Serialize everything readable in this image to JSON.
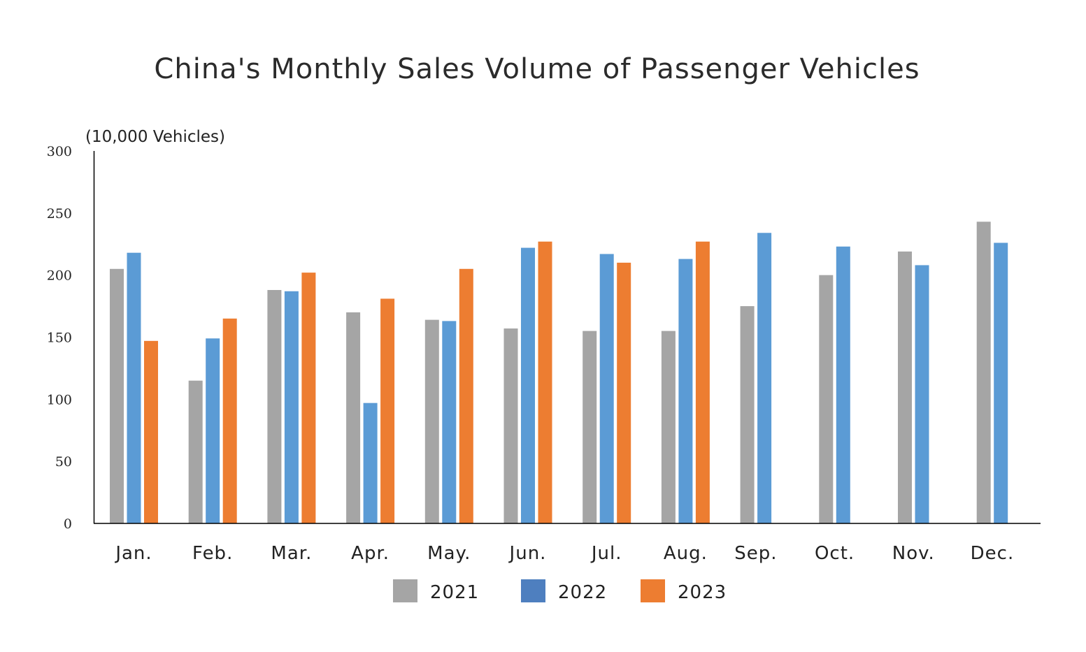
{
  "chart_data": {
    "type": "bar",
    "title": "China's Monthly Sales Volume of Passenger Vehicles",
    "ylabel": "(10,000 Vehicles)",
    "xlabel": "",
    "ylim": [
      0,
      300
    ],
    "yticks": [
      0,
      50,
      100,
      150,
      200,
      250,
      300
    ],
    "grid": false,
    "legend_position": "bottom",
    "categories": [
      "Jan.",
      "Feb.",
      "Mar.",
      "Apr.",
      "May.",
      "Jun.",
      "Jul.",
      "Aug.",
      "Sep.",
      "Oct.",
      "Nov.",
      "Dec."
    ],
    "series": [
      {
        "name": "2021",
        "color": "#a5a5a5",
        "legend_color": "#a5a5a5",
        "values": [
          205,
          115,
          188,
          170,
          164,
          157,
          155,
          155,
          175,
          200,
          219,
          243
        ]
      },
      {
        "name": "2022",
        "color": "#5b9bd5",
        "legend_color": "#4e7fbf",
        "values": [
          218,
          149,
          187,
          97,
          163,
          222,
          217,
          213,
          234,
          223,
          208,
          226
        ]
      },
      {
        "name": "2023",
        "color": "#ed7d31",
        "legend_color": "#ed7d31",
        "values": [
          147,
          165,
          202,
          181,
          205,
          227,
          210,
          227,
          null,
          null,
          null,
          null
        ]
      }
    ]
  }
}
